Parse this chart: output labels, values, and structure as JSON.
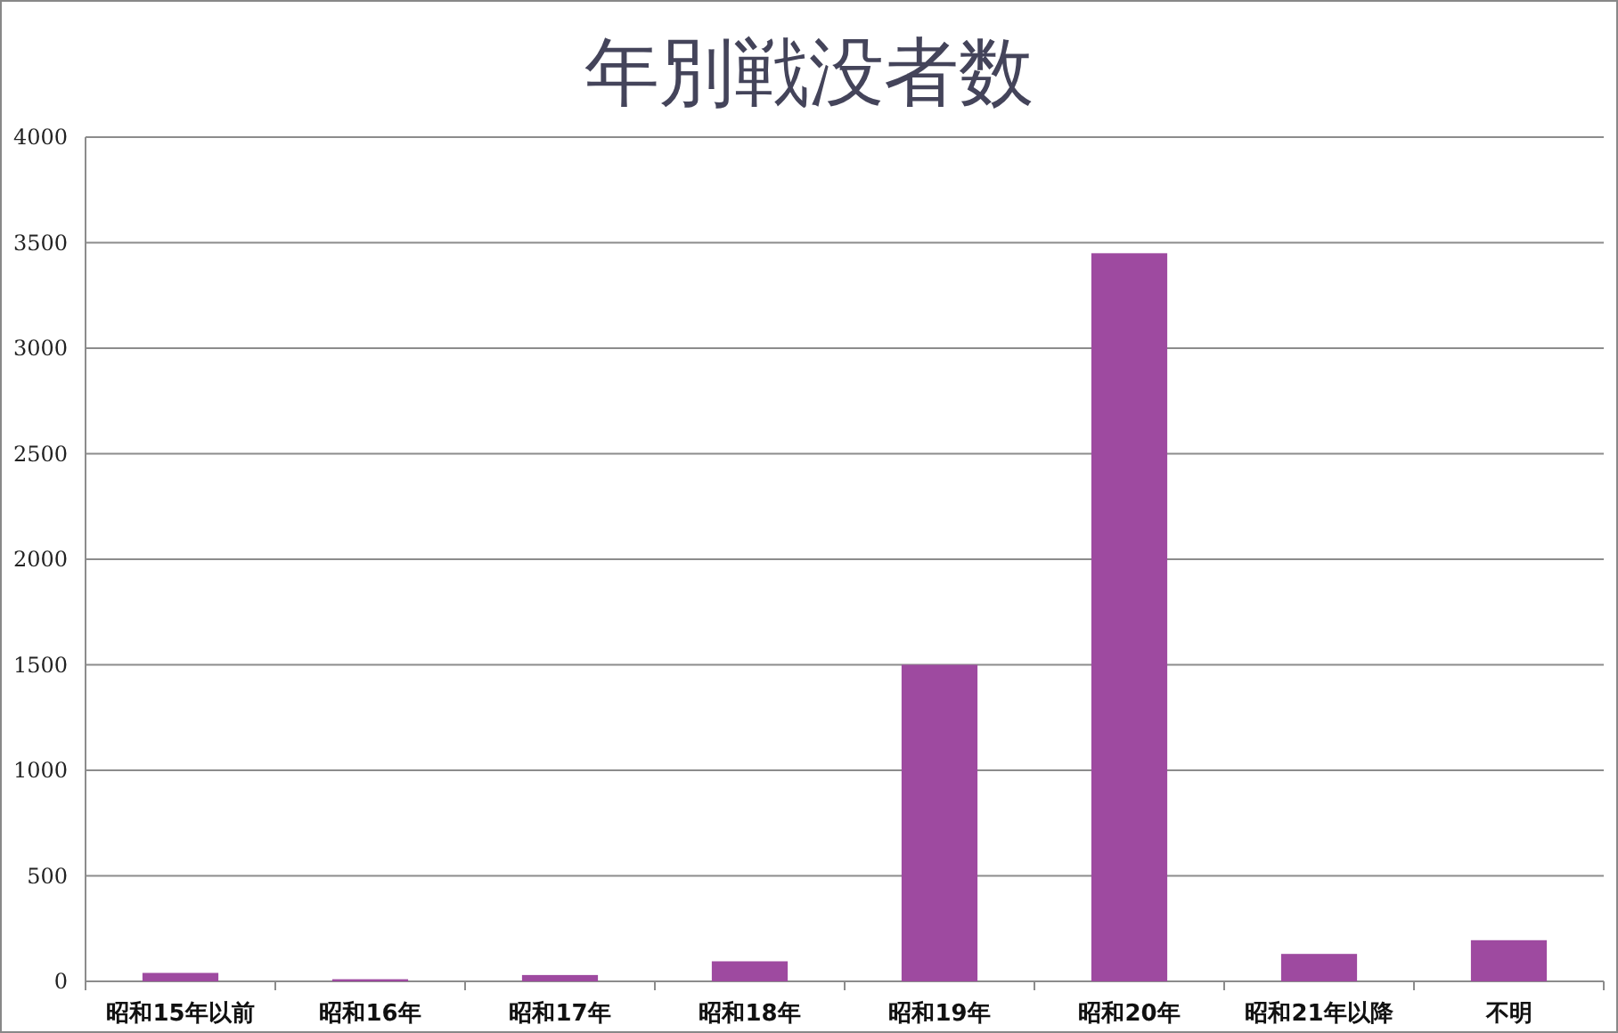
{
  "chart_data": {
    "type": "bar",
    "title": "年別戦没者数",
    "categories": [
      "昭和15年以前",
      "昭和16年",
      "昭和17年",
      "昭和18年",
      "昭和19年",
      "昭和20年",
      "昭和21年以降",
      "不明"
    ],
    "values": [
      40,
      10,
      30,
      95,
      1500,
      3450,
      130,
      195
    ],
    "color": "#9e4aa0",
    "ylim": [
      0,
      4000
    ],
    "yticks": [
      0,
      500,
      1000,
      1500,
      2000,
      2500,
      3000,
      3500,
      4000
    ],
    "grid": "y"
  }
}
